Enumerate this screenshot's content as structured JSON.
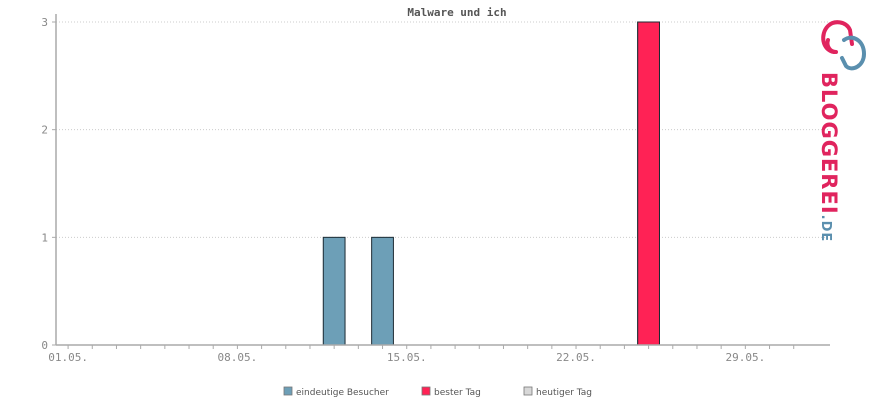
{
  "chart_data": {
    "type": "bar",
    "title": "Malware und ich",
    "xlabel": "",
    "ylabel": "",
    "x_tick_labels": [
      "01.05.",
      "08.05.",
      "15.05.",
      "22.05.",
      "29.05."
    ],
    "y_tick_labels": [
      "0",
      "1",
      "2",
      "3"
    ],
    "ylim": [
      0,
      3
    ],
    "grid": true,
    "legend_position": "bottom",
    "series": [
      {
        "name": "eindeutige Besucher",
        "color": "#6d9fb7",
        "points": [
          {
            "x": "12.05.",
            "value": 1
          },
          {
            "x": "14.05.",
            "value": 1
          },
          {
            "x": "25.05.",
            "value": 3
          }
        ]
      },
      {
        "name": "bester Tag",
        "color": "#ff2255",
        "points": [
          {
            "x": "25.05.",
            "value": 3
          }
        ]
      },
      {
        "name": "heutiger Tag",
        "color": "#d8d8d8",
        "points": []
      }
    ]
  },
  "logo": {
    "main": "BLOGGEREI",
    "suffix": ".DE",
    "colors": {
      "pink": "#e0245e",
      "blue": "#5a8fae",
      "grey": "#9aa0a6"
    }
  }
}
